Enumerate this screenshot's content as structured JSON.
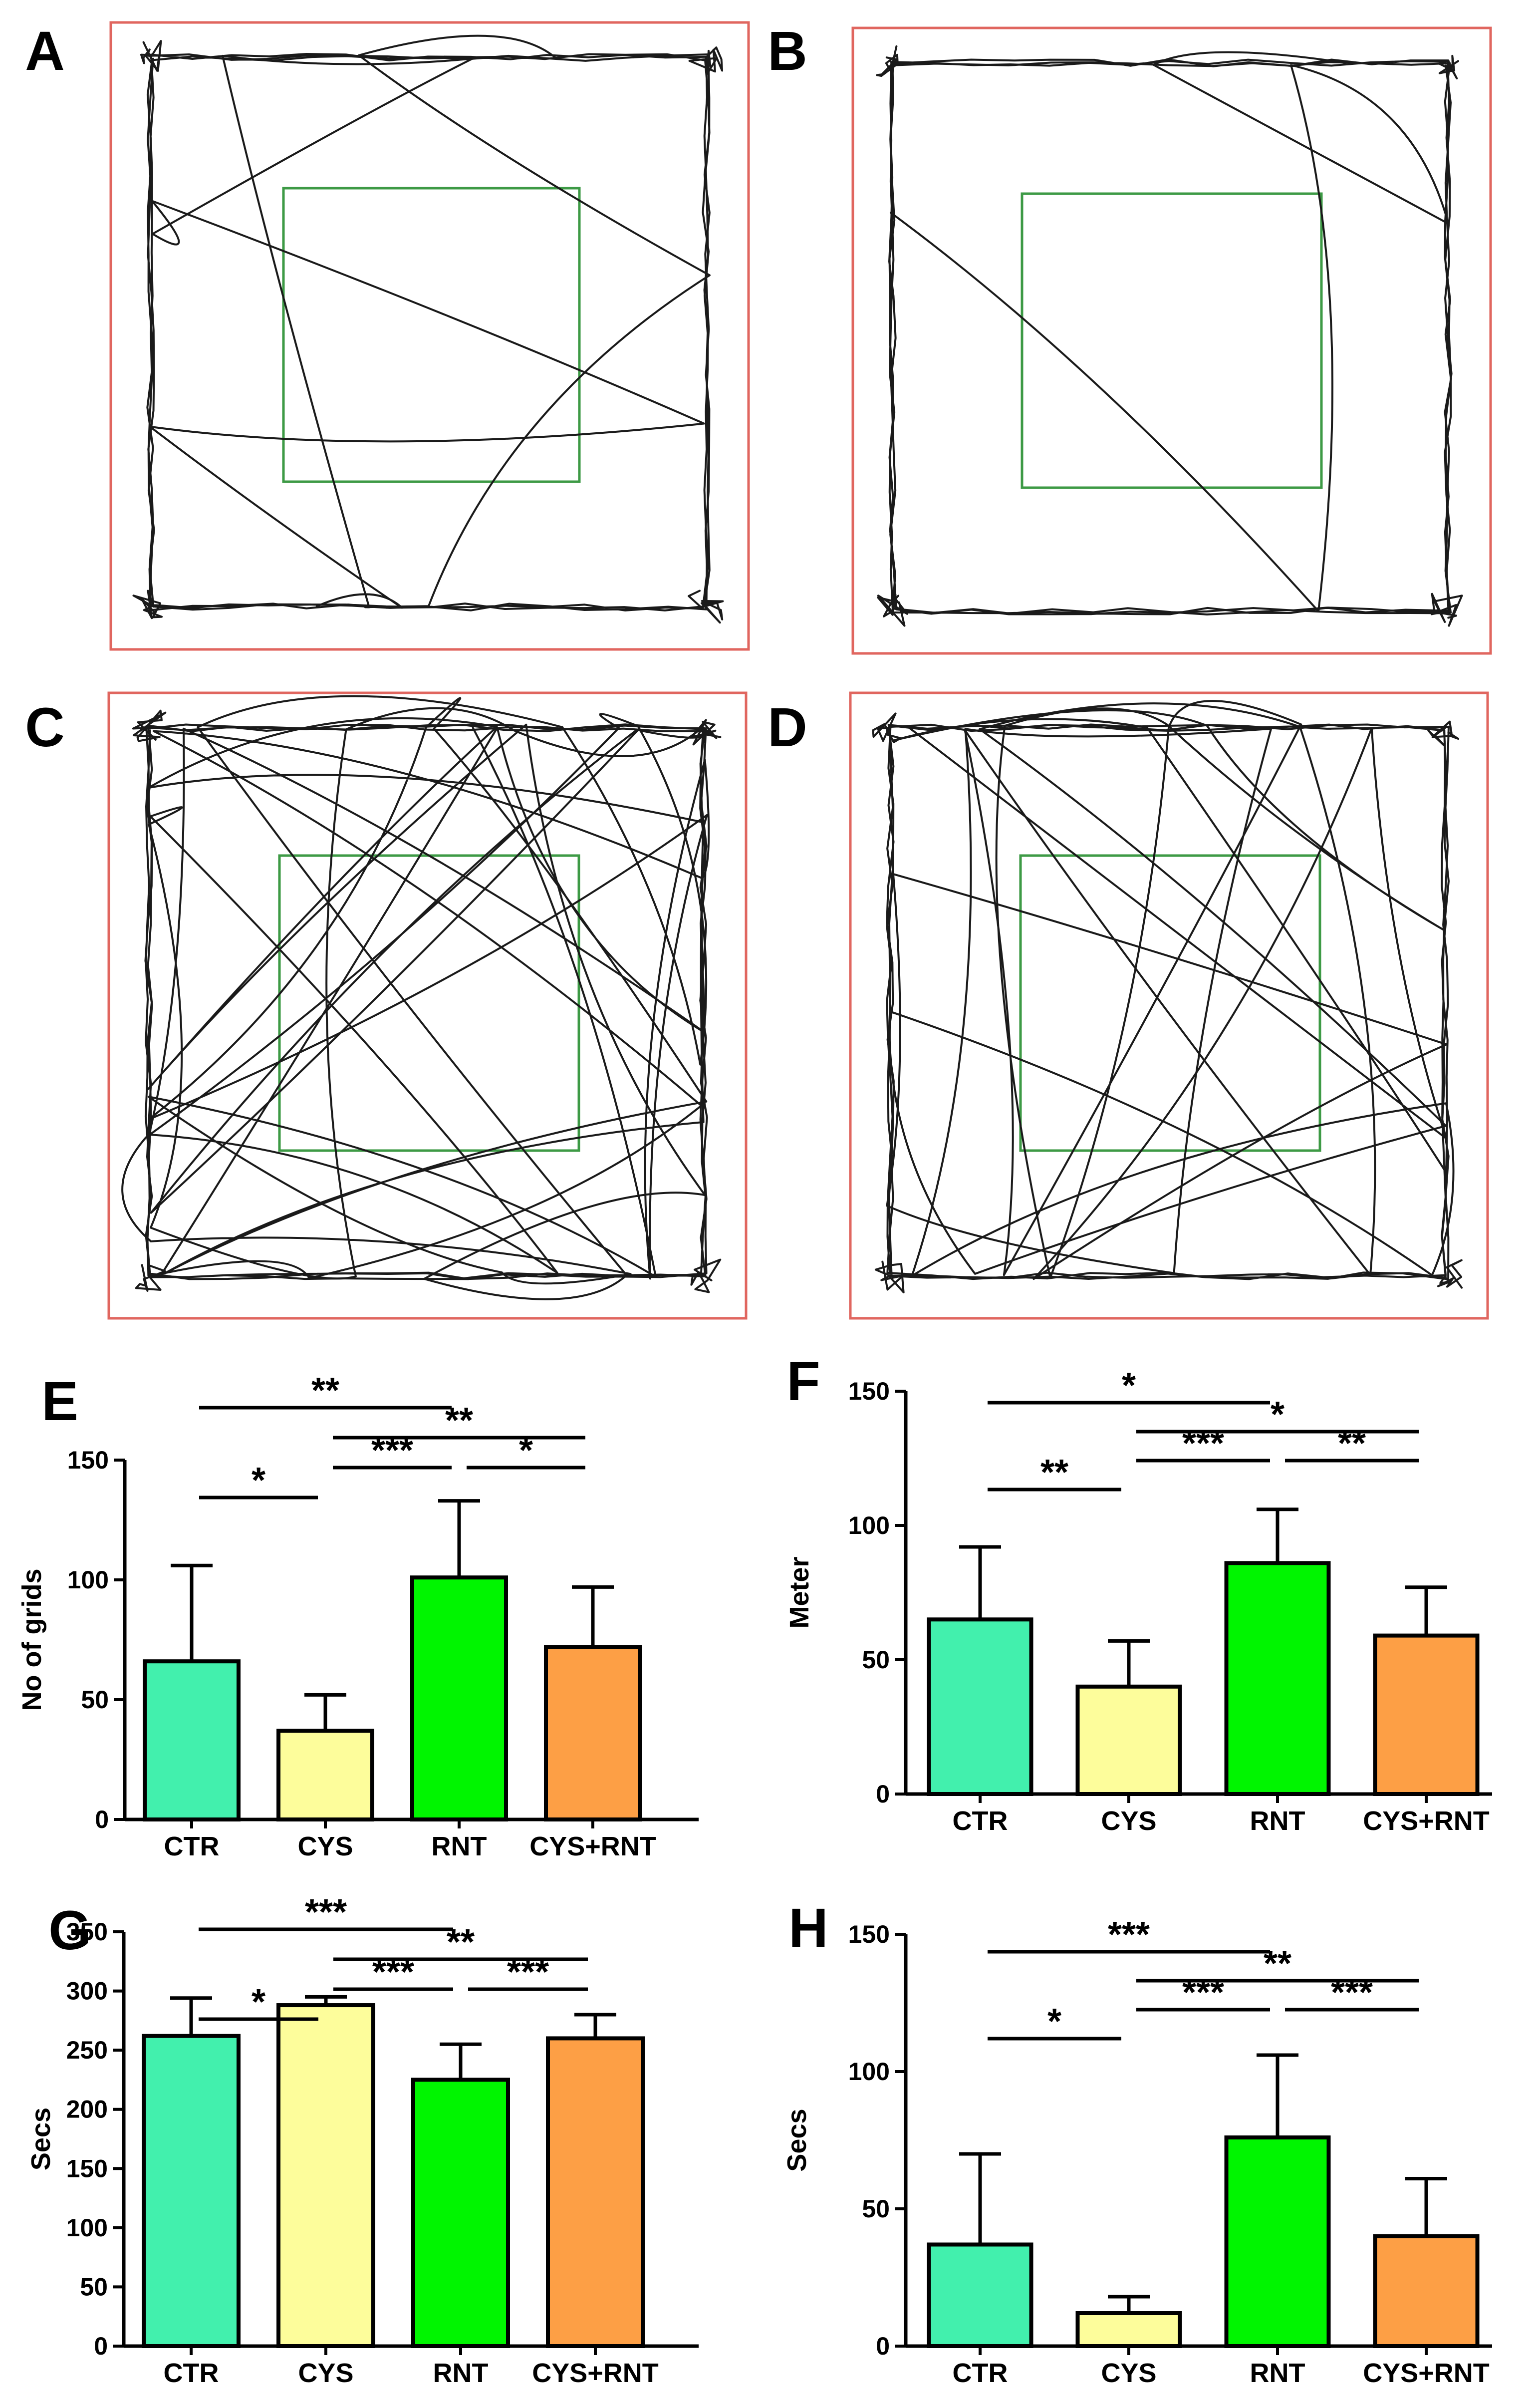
{
  "panels": {
    "A": "A",
    "B": "B",
    "C": "C",
    "D": "D",
    "E": "E",
    "F": "F",
    "G": "G",
    "H": "H"
  },
  "colors": {
    "CTR": "#42f0ad",
    "CYS": "#fdfd9b",
    "RNT": "#00f500",
    "CYS+RNT": "#fd9f45",
    "arena": "#e0665f",
    "zone": "#3d9a45",
    "track": "#1a1a1a"
  },
  "chart_data": [
    {
      "panel": "E",
      "type": "bar",
      "categories": [
        "CTR",
        "CYS",
        "RNT",
        "CYS+RNT"
      ],
      "values": [
        66,
        37,
        101,
        72
      ],
      "errors": [
        40,
        15,
        32,
        25
      ],
      "ylabel": "No of grids",
      "ylim": [
        0,
        150
      ],
      "yticks": [
        0,
        50,
        100,
        150
      ],
      "significance": [
        {
          "from": 0,
          "to": 1,
          "label": "*"
        },
        {
          "from": 1,
          "to": 2,
          "label": "***"
        },
        {
          "from": 2,
          "to": 3,
          "label": "*"
        },
        {
          "from": 0,
          "to": 2,
          "label": "**"
        },
        {
          "from": 1,
          "to": 3,
          "label": "**"
        }
      ]
    },
    {
      "panel": "F",
      "type": "bar",
      "categories": [
        "CTR",
        "CYS",
        "RNT",
        "CYS+RNT"
      ],
      "values": [
        65,
        40,
        86,
        59
      ],
      "errors": [
        27,
        17,
        20,
        18
      ],
      "ylabel": "Meter",
      "ylim": [
        0,
        150
      ],
      "yticks": [
        0,
        50,
        100,
        150
      ],
      "significance": [
        {
          "from": 0,
          "to": 1,
          "label": "**"
        },
        {
          "from": 1,
          "to": 2,
          "label": "***"
        },
        {
          "from": 2,
          "to": 3,
          "label": "**"
        },
        {
          "from": 1,
          "to": 3,
          "label": "*"
        },
        {
          "from": 0,
          "to": 2,
          "label": "*"
        }
      ]
    },
    {
      "panel": "G",
      "type": "bar",
      "categories": [
        "CTR",
        "CYS",
        "RNT",
        "CYS+RNT"
      ],
      "values": [
        262,
        288,
        225,
        260
      ],
      "errors": [
        32,
        7,
        30,
        20
      ],
      "ylabel": "Secs",
      "ylim": [
        0,
        350
      ],
      "yticks": [
        0,
        50,
        100,
        150,
        200,
        250,
        300,
        350
      ],
      "significance": [
        {
          "from": 0,
          "to": 1,
          "label": "*"
        },
        {
          "from": 1,
          "to": 2,
          "label": "***"
        },
        {
          "from": 2,
          "to": 3,
          "label": "***"
        },
        {
          "from": 1,
          "to": 3,
          "label": "**"
        },
        {
          "from": 0,
          "to": 2,
          "label": "***"
        }
      ]
    },
    {
      "panel": "H",
      "type": "bar",
      "categories": [
        "CTR",
        "CYS",
        "RNT",
        "CYS+RNT"
      ],
      "values": [
        37,
        12,
        76,
        40
      ],
      "errors": [
        33,
        6,
        30,
        21
      ],
      "ylabel": "Secs",
      "ylim": [
        0,
        150
      ],
      "yticks": [
        0,
        50,
        100,
        150
      ],
      "significance": [
        {
          "from": 0,
          "to": 1,
          "label": "*"
        },
        {
          "from": 1,
          "to": 2,
          "label": "***"
        },
        {
          "from": 2,
          "to": 3,
          "label": "***"
        },
        {
          "from": 1,
          "to": 3,
          "label": "**"
        },
        {
          "from": 0,
          "to": 2,
          "label": "***"
        }
      ]
    }
  ]
}
